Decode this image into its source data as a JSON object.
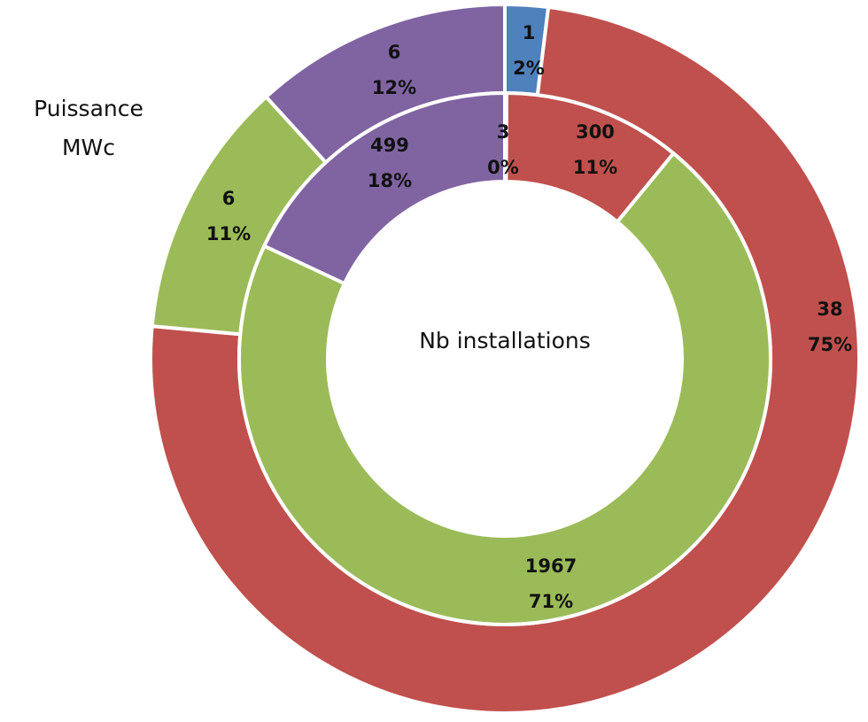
{
  "chart_data": {
    "type": "donut",
    "colors": [
      "#4f81bd",
      "#c0504d",
      "#9bbb59",
      "#8064a2"
    ],
    "series": [
      {
        "name": "Puissance MWc",
        "values": [
          1,
          38,
          6,
          6
        ],
        "percent_labels": [
          "2%",
          "75%",
          "11%",
          "12%"
        ]
      },
      {
        "name": "Nb installations",
        "values": [
          3,
          300,
          1967,
          499
        ],
        "percent_labels": [
          "0%",
          "11%",
          "71%",
          "18%"
        ]
      }
    ]
  }
}
